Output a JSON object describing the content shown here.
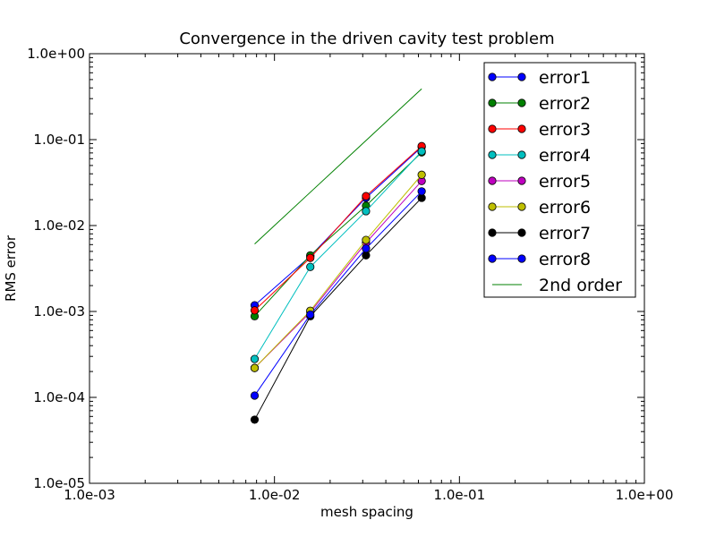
{
  "chart_data": {
    "type": "line",
    "title": "Convergence in the driven cavity test problem",
    "xlabel": "mesh spacing",
    "ylabel": "RMS error",
    "xscale": "log",
    "yscale": "log",
    "xlim": [
      0.001,
      1.0
    ],
    "ylim": [
      1e-05,
      1.0
    ],
    "xticks": [
      0.001,
      0.01,
      0.1,
      1.0
    ],
    "xtick_labels": [
      "1.0e-03",
      "1.0e-02",
      "1.0e-01",
      "1.0e+00"
    ],
    "yticks": [
      1e-05,
      0.0001,
      0.001,
      0.01,
      0.1,
      1.0
    ],
    "ytick_labels": [
      "1.0e-05",
      "1.0e-04",
      "1.0e-03",
      "1.0e-02",
      "1.0e-01",
      "1.0e+00"
    ],
    "grid": false,
    "legend_position": "top-right",
    "x": [
      0.0078125,
      0.015625,
      0.03125,
      0.0625
    ],
    "series": [
      {
        "name": "error1",
        "color": "#0000ff",
        "marker": true,
        "values": [
          0.00118,
          0.0044,
          0.021,
          0.082
        ]
      },
      {
        "name": "error2",
        "color": "#008000",
        "marker": true,
        "values": [
          0.00088,
          0.0045,
          0.017,
          0.071
        ]
      },
      {
        "name": "error3",
        "color": "#ff0000",
        "marker": true,
        "values": [
          0.00103,
          0.0042,
          0.022,
          0.084
        ]
      },
      {
        "name": "error4",
        "color": "#00bfbf",
        "marker": true,
        "values": [
          0.00028,
          0.0033,
          0.0147,
          0.073
        ]
      },
      {
        "name": "error5",
        "color": "#bf00bf",
        "marker": true,
        "values": [
          0.00022,
          0.00098,
          0.0063,
          0.033
        ]
      },
      {
        "name": "error6",
        "color": "#bfbf00",
        "marker": true,
        "values": [
          0.00022,
          0.00102,
          0.0068,
          0.039
        ]
      },
      {
        "name": "error7",
        "color": "#000000",
        "marker": true,
        "values": [
          5.5e-05,
          0.00088,
          0.0045,
          0.021
        ]
      },
      {
        "name": "error8",
        "color": "#0000ff",
        "marker": true,
        "values": [
          0.000105,
          0.00092,
          0.0054,
          0.025
        ]
      },
      {
        "name": "2nd order",
        "color": "#008000",
        "marker": false,
        "values": [
          0.0061,
          0.0244,
          0.0977,
          0.39
        ]
      }
    ]
  }
}
